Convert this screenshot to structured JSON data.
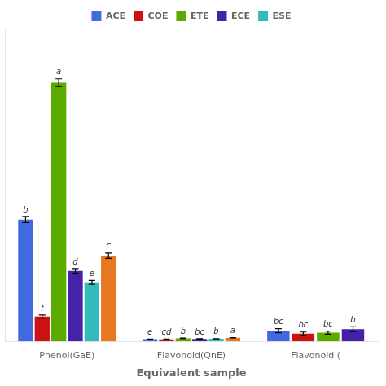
{
  "chart_data": {
    "type": "bar",
    "xlabel": "Equivalent sample",
    "categories": [
      "Phenol(GaE)",
      "Flavonoid(QnE)",
      "Flavonoid ("
    ],
    "series": [
      {
        "name": "ACE",
        "color": "#4169e1",
        "values": [
          3.2,
          0.058,
          0.28
        ],
        "errors": [
          0.08,
          0.004,
          0.055
        ],
        "annotations": [
          "b",
          "e",
          "bc"
        ]
      },
      {
        "name": "COE",
        "color": "#cc1111",
        "values": [
          0.65,
          0.055,
          0.2
        ],
        "errors": [
          0.04,
          0.004,
          0.045
        ],
        "annotations": [
          "f",
          "cd",
          "bc"
        ]
      },
      {
        "name": "ETE",
        "color": "#5aaa00",
        "values": [
          6.8,
          0.08,
          0.23
        ],
        "errors": [
          0.1,
          0.006,
          0.04
        ],
        "annotations": [
          "a",
          "b",
          "bc"
        ]
      },
      {
        "name": "ECE",
        "color": "#4422aa",
        "values": [
          1.85,
          0.065,
          0.32
        ],
        "errors": [
          0.06,
          0.005,
          0.06
        ],
        "annotations": [
          "d",
          "bc",
          "b"
        ]
      },
      {
        "name": "ESE",
        "color": "#33bbbb",
        "values": [
          1.55,
          0.068,
          null
        ],
        "errors": [
          0.05,
          0.005,
          null
        ],
        "annotations": [
          "e",
          "b",
          null
        ]
      },
      {
        "color": "#e87722",
        "values": [
          2.25,
          0.095,
          null
        ],
        "errors": [
          0.07,
          0.005,
          null
        ],
        "annotations": [
          "c",
          "a",
          null
        ]
      }
    ],
    "ylim": [
      0,
      8.2
    ],
    "yticks": [],
    "grid": false,
    "legend": "top",
    "tick_labels": "x"
  }
}
